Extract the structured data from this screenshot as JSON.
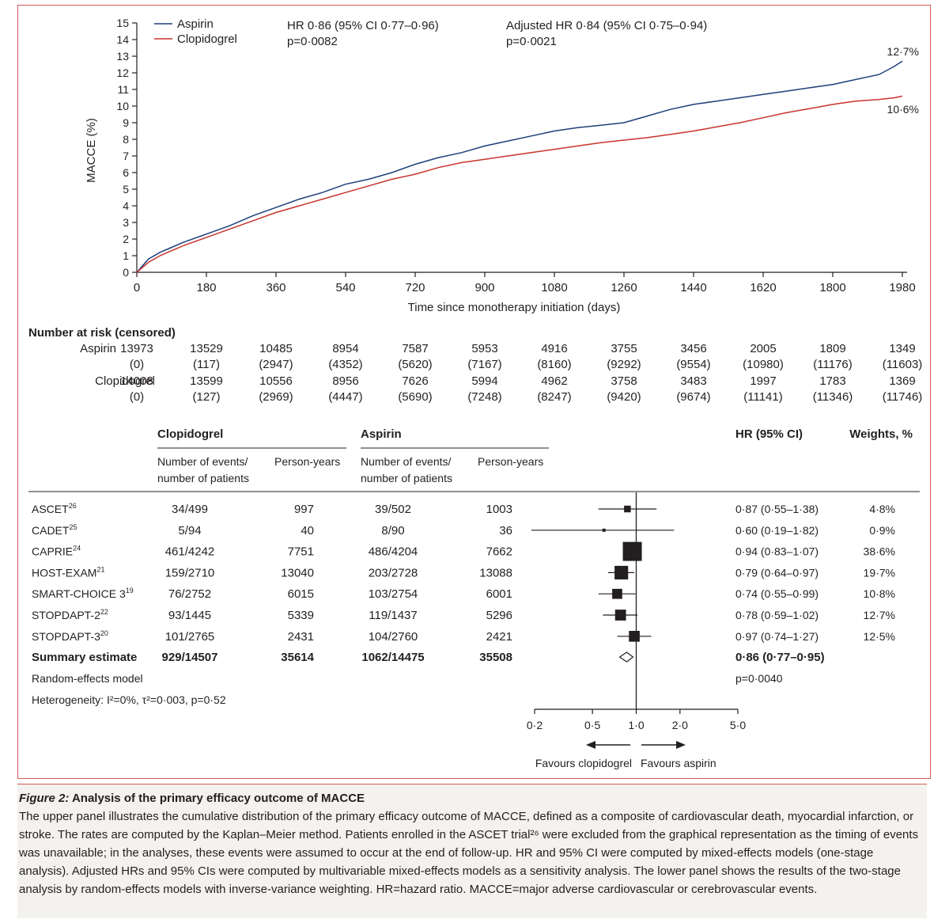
{
  "chart_data": [
    {
      "type": "line",
      "xlabel": "Time since monotherapy initiation (days)",
      "ylabel": "MACCE (%)",
      "xlim": [
        0,
        1980
      ],
      "ylim": [
        0,
        15
      ],
      "xticks": [
        "0",
        "180",
        "360",
        "540",
        "720",
        "900",
        "1080",
        "1260",
        "1440",
        "1620",
        "1800",
        "1980"
      ],
      "yticks": [
        "0",
        "1",
        "2",
        "3",
        "4",
        "5",
        "6",
        "7",
        "8",
        "9",
        "10",
        "11",
        "12",
        "13",
        "14",
        "15"
      ],
      "legend": [
        "Aspirin",
        "Clopidogrel"
      ],
      "colors": {
        "aspirin": "#1f3f7a",
        "clopidogrel": "#c8342e",
        "axis": "#231f20",
        "frame": "#d35a5a"
      },
      "annotations": {
        "hr_line1": "HR 0·86 (95% CI 0·77–0·96)",
        "hr_line2": "p=0·0082",
        "adj_line1": "Adjusted HR 0·84 (95% CI 0·75–0·94)",
        "adj_line2": "p=0·0021",
        "aspirin_end": "12·7%",
        "clopidogrel_end": "10·6%"
      },
      "series": [
        {
          "name": "Aspirin",
          "x": [
            0,
            30,
            60,
            90,
            120,
            180,
            240,
            300,
            360,
            420,
            480,
            540,
            600,
            660,
            720,
            780,
            840,
            900,
            960,
            1020,
            1080,
            1140,
            1200,
            1260,
            1320,
            1380,
            1440,
            1500,
            1560,
            1620,
            1680,
            1740,
            1800,
            1860,
            1920,
            1960,
            1980
          ],
          "values": [
            0,
            0.8,
            1.2,
            1.5,
            1.8,
            2.3,
            2.8,
            3.4,
            3.9,
            4.4,
            4.8,
            5.3,
            5.6,
            6.0,
            6.5,
            6.9,
            7.2,
            7.6,
            7.9,
            8.2,
            8.5,
            8.7,
            8.85,
            9.0,
            9.4,
            9.8,
            10.1,
            10.3,
            10.5,
            10.7,
            10.9,
            11.1,
            11.3,
            11.6,
            11.9,
            12.4,
            12.7
          ]
        },
        {
          "name": "Clopidogrel",
          "x": [
            0,
            30,
            60,
            90,
            120,
            180,
            240,
            300,
            360,
            420,
            480,
            540,
            600,
            660,
            720,
            780,
            840,
            900,
            960,
            1020,
            1080,
            1140,
            1200,
            1260,
            1320,
            1380,
            1440,
            1500,
            1560,
            1620,
            1680,
            1740,
            1800,
            1860,
            1920,
            1960,
            1980
          ],
          "values": [
            0,
            0.6,
            1.0,
            1.3,
            1.6,
            2.1,
            2.6,
            3.1,
            3.6,
            4.0,
            4.4,
            4.8,
            5.2,
            5.6,
            5.9,
            6.3,
            6.6,
            6.8,
            7.0,
            7.2,
            7.4,
            7.6,
            7.8,
            7.95,
            8.1,
            8.3,
            8.5,
            8.75,
            9.0,
            9.3,
            9.6,
            9.85,
            10.1,
            10.3,
            10.4,
            10.5,
            10.6
          ]
        }
      ]
    },
    {
      "type": "table",
      "title": "Number at risk (censored)",
      "rows": [
        {
          "label": "Aspirin",
          "at_risk": [
            "13973",
            "13529",
            "10485",
            "8954",
            "7587",
            "5953",
            "4916",
            "3755",
            "3456",
            "2005",
            "1809",
            "1349"
          ],
          "censored": [
            "(0)",
            "(117)",
            "(2947)",
            "(4352)",
            "(5620)",
            "(7167)",
            "(8160)",
            "(9292)",
            "(9554)",
            "(10980)",
            "(11176)",
            "(11603)"
          ]
        },
        {
          "label": "Clopidogrel",
          "at_risk": [
            "14008",
            "13599",
            "10556",
            "8956",
            "7626",
            "5994",
            "4962",
            "3758",
            "3483",
            "1997",
            "1783",
            "1369"
          ],
          "censored": [
            "(0)",
            "(127)",
            "(2969)",
            "(4447)",
            "(5690)",
            "(7248)",
            "(8247)",
            "(9420)",
            "(9674)",
            "(11141)",
            "(11346)",
            "(11746)"
          ]
        }
      ]
    },
    {
      "type": "scatter",
      "subtype": "forest",
      "headers": {
        "clopidogrel": "Clopidogrel",
        "aspirin": "Aspirin",
        "hr": "HR (95% CI)",
        "weights": "Weights, %",
        "events1": "Number of events/",
        "events2": "number of patients",
        "py": "Person-years"
      },
      "xscale": "log",
      "xticks": [
        "0·2",
        "0·5",
        "1·0",
        "2·0",
        "5·0"
      ],
      "xtick_values": [
        0.2,
        0.5,
        1.0,
        2.0,
        5.0
      ],
      "favours_left": "Favours clopidogrel",
      "favours_right": "Favours aspirin",
      "studies": [
        {
          "name": "ASCET",
          "ref": "26",
          "clop_events": "34/499",
          "clop_py": "997",
          "asp_events": "39/502",
          "asp_py": "1003",
          "hr": 0.87,
          "lo": 0.55,
          "hi": 1.38,
          "hr_text": "0·87 (0·55–1·38)",
          "weight": 4.8,
          "weight_text": "4·8%"
        },
        {
          "name": "CADET",
          "ref": "25",
          "clop_events": "5/94",
          "clop_py": "40",
          "asp_events": "8/90",
          "asp_py": "36",
          "hr": 0.6,
          "lo": 0.19,
          "hi": 1.82,
          "hr_text": "0·60 (0·19–1·82)",
          "weight": 0.9,
          "weight_text": "0·9%"
        },
        {
          "name": "CAPRIE",
          "ref": "24",
          "clop_events": "461/4242",
          "clop_py": "7751",
          "asp_events": "486/4204",
          "asp_py": "7662",
          "hr": 0.94,
          "lo": 0.83,
          "hi": 1.07,
          "hr_text": "0·94 (0·83–1·07)",
          "weight": 38.6,
          "weight_text": "38·6%"
        },
        {
          "name": "HOST-EXAM",
          "ref": "21",
          "clop_events": "159/2710",
          "clop_py": "13040",
          "asp_events": "203/2728",
          "asp_py": "13088",
          "hr": 0.79,
          "lo": 0.64,
          "hi": 0.97,
          "hr_text": "0·79 (0·64–0·97)",
          "weight": 19.7,
          "weight_text": "19·7%"
        },
        {
          "name": "SMART-CHOICE 3",
          "ref": "19",
          "clop_events": "76/2752",
          "clop_py": "6015",
          "asp_events": "103/2754",
          "asp_py": "6001",
          "hr": 0.74,
          "lo": 0.55,
          "hi": 0.99,
          "hr_text": "0·74 (0·55–0·99)",
          "weight": 10.8,
          "weight_text": "10·8%"
        },
        {
          "name": "STOPDAPT-2",
          "ref": "22",
          "clop_events": "93/1445",
          "clop_py": "5339",
          "asp_events": "119/1437",
          "asp_py": "5296",
          "hr": 0.78,
          "lo": 0.59,
          "hi": 1.02,
          "hr_text": "0·78 (0·59–1·02)",
          "weight": 12.7,
          "weight_text": "12·7%"
        },
        {
          "name": "STOPDAPT-3",
          "ref": "20",
          "clop_events": "101/2765",
          "clop_py": "2431",
          "asp_events": "104/2760",
          "asp_py": "2421",
          "hr": 0.97,
          "lo": 0.74,
          "hi": 1.27,
          "hr_text": "0·97 (0·74–1·27)",
          "weight": 12.5,
          "weight_text": "12·5%"
        }
      ],
      "summary": {
        "name": "Summary estimate",
        "clop_events": "929/14507",
        "clop_py": "35614",
        "asp_events": "1062/14475",
        "asp_py": "35508",
        "hr": 0.86,
        "lo": 0.77,
        "hi": 0.95,
        "hr_text": "0·86 (0·77–0·95)",
        "p": "p=0·0040"
      },
      "model": "Random-effects model",
      "heterogeneity": "Heterogeneity: I²=0%, τ²=0·003, p=0·52"
    }
  ],
  "caption": {
    "label": "Figure 2:",
    "title": " Analysis of the primary efficacy outcome of MACCE",
    "body": "The upper panel illustrates the cumulative distribution of the primary efficacy outcome of MACCE, defined as a composite of cardiovascular death, myocardial infarction, or stroke. The rates are computed by the Kaplan–Meier method. Patients enrolled in the ASCET trial²⁶ were excluded from the graphical representation as the timing of events was unavailable; in the analyses, these events were assumed to occur at the end of follow-up. HR and 95% CI were computed by mixed-effects models (one-stage analysis). Adjusted HRs and 95% CIs were computed by multivariable mixed-effects models as a sensitivity analysis. The lower panel shows the results of the two-stage analysis by random-effects models with inverse-variance weighting. HR=hazard ratio. MACCE=major adverse cardiovascular or cerebrovascular events."
  }
}
